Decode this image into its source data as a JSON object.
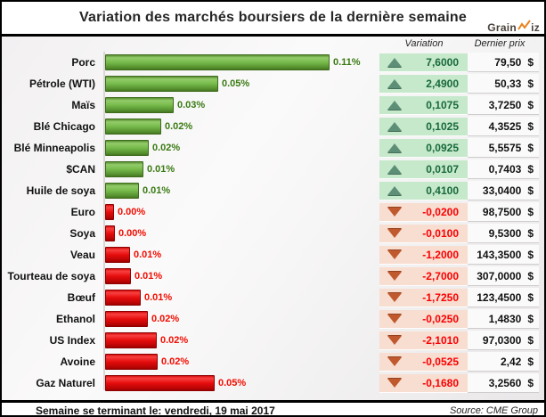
{
  "title": "Variation des marchés boursiers de la dernière semaine",
  "logo": {
    "part1": "Grain",
    "part2": "iz",
    "accent_color": "#e8821e"
  },
  "columns": {
    "variation": "Variation",
    "last_price": "Dernier prix"
  },
  "footer": {
    "week_ending": "Semaine se terminant le: vendredi, 19 mai 2017",
    "source": "Source: CME Group"
  },
  "colors": {
    "bar_up": "#6fb244",
    "bar_down": "#e00d0d",
    "pct_up_text": "#397a12",
    "pct_down_text": "#f20c00",
    "variation_up_bg": "#c6e8cb",
    "variation_down_bg": "#f8ddd1",
    "variation_up_text": "#17693c",
    "variation_down_text": "#fb0000",
    "up_triangle": "#5d8f77",
    "down_triangle": "#c05a2e"
  },
  "chart_data": {
    "type": "bar",
    "orientation": "horizontal",
    "title": "Variation des marchés boursiers de la dernière semaine",
    "unit_pct_label": "%",
    "currency": "$",
    "legend_position": "none",
    "grid": false,
    "rows": [
      {
        "label": "Porc",
        "pct": "0.11%",
        "direction": "up",
        "variation": "7,6000",
        "price": "79,50",
        "bar_frac": 1.0
      },
      {
        "label": "Pétrole (WTI)",
        "pct": "0.05%",
        "direction": "up",
        "variation": "2,4900",
        "price": "50,33",
        "bar_frac": 0.5
      },
      {
        "label": "Maïs",
        "pct": "0.03%",
        "direction": "up",
        "variation": "0,1075",
        "price": "3,7250",
        "bar_frac": 0.3
      },
      {
        "label": "Blé Chicago",
        "pct": "0.02%",
        "direction": "up",
        "variation": "0,1025",
        "price": "4,3525",
        "bar_frac": 0.245
      },
      {
        "label": "Blé Minneapolis",
        "pct": "0.02%",
        "direction": "up",
        "variation": "0,0925",
        "price": "5,5575",
        "bar_frac": 0.187
      },
      {
        "label": "$CAN",
        "pct": "0.01%",
        "direction": "up",
        "variation": "0,0107",
        "price": "0,7403",
        "bar_frac": 0.163
      },
      {
        "label": "Huile de soya",
        "pct": "0.01%",
        "direction": "up",
        "variation": "0,4100",
        "price": "33,0400",
        "bar_frac": 0.143
      },
      {
        "label": "Euro",
        "pct": "0.00%",
        "direction": "down",
        "variation": "-0,0200",
        "price": "98,7500",
        "bar_frac": 0.032
      },
      {
        "label": "Soya",
        "pct": "0.00%",
        "direction": "down",
        "variation": "-0,0100",
        "price": "9,5300",
        "bar_frac": 0.036
      },
      {
        "label": "Veau",
        "pct": "0.01%",
        "direction": "down",
        "variation": "-1,2000",
        "price": "143,3500",
        "bar_frac": 0.103
      },
      {
        "label": "Tourteau de soya",
        "pct": "0.01%",
        "direction": "down",
        "variation": "-2,7000",
        "price": "307,0000",
        "bar_frac": 0.107
      },
      {
        "label": "Bœuf",
        "pct": "0.01%",
        "direction": "down",
        "variation": "-1,7250",
        "price": "123,4500",
        "bar_frac": 0.151
      },
      {
        "label": "Ethanol",
        "pct": "0.02%",
        "direction": "down",
        "variation": "-0,0250",
        "price": "1,4830",
        "bar_frac": 0.183
      },
      {
        "label": "US Index",
        "pct": "0.02%",
        "direction": "down",
        "variation": "-2,1010",
        "price": "97,0300",
        "bar_frac": 0.222
      },
      {
        "label": "Avoine",
        "pct": "0.02%",
        "direction": "down",
        "variation": "-0,0525",
        "price": "2,42",
        "bar_frac": 0.226
      },
      {
        "label": "Gaz Naturel",
        "pct": "0.05%",
        "direction": "down",
        "variation": "-0,1680",
        "price": "3,2560",
        "bar_frac": 0.484
      }
    ]
  }
}
